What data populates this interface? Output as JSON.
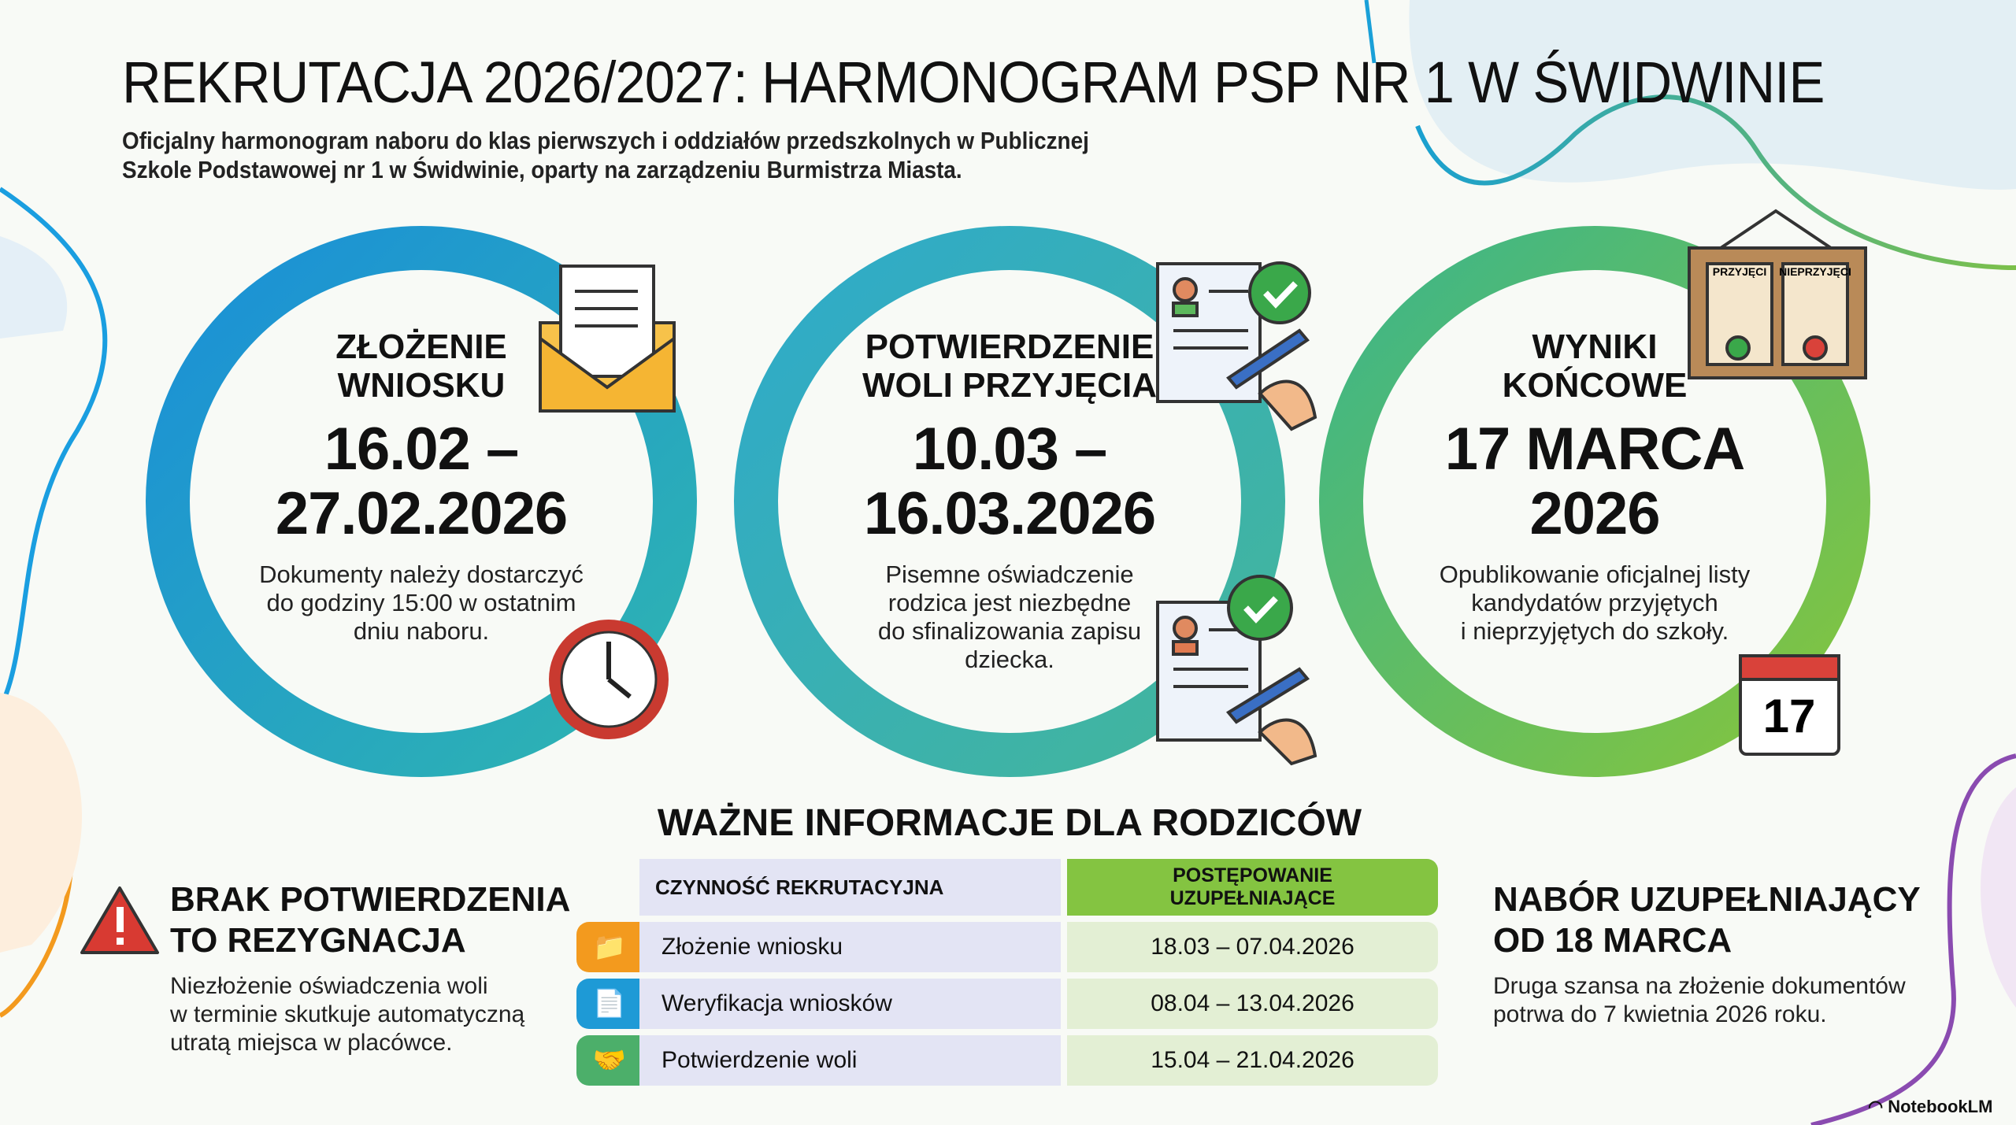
{
  "title": "REKRUTACJA 2026/2027: HARMONOGRAM PSP NR 1 W ŚWIDWINIE",
  "subtitle": [
    "Oficjalny harmonogram naboru do klas pierwszych i oddziałów przedszkolnych w Publicznej",
    "Szkole Podstawowej nr 1 w Świdwinie, oparty na zarządzeniu Burmistrza Miasta."
  ],
  "colors": {
    "blue": "#1e9ad6",
    "teal": "#39b3a6",
    "green": "#72c04a",
    "orange": "#f39a1e",
    "purple": "#8a4bb0"
  },
  "stages": [
    {
      "head": [
        "ZŁOŻENIE",
        "WNIOSKU"
      ],
      "date": [
        "16.02 –",
        "27.02.2026"
      ],
      "desc": [
        "Dokumenty należy dostarczyć",
        "do godziny 15:00 w ostatnim",
        "dniu naboru."
      ],
      "icons": [
        "envelope-icon",
        "clock-icon"
      ]
    },
    {
      "head": [
        "POTWIERDZENIE",
        "WOLI PRZYJĘCIA"
      ],
      "date": [
        "10.03 –",
        "16.03.2026"
      ],
      "desc": [
        "Pisemne oświadczenie",
        "rodzica jest niezbędne",
        "do sfinalizowania zapisu",
        "dziecka."
      ],
      "icons": [
        "signed-document-icon",
        "signed-document-icon"
      ]
    },
    {
      "head": [
        "WYNIKI",
        "KOŃCOWE"
      ],
      "date": [
        "17 MARCA",
        "2026"
      ],
      "desc": [
        "Opublikowanie oficjalnej listy",
        "kandydatów przyjętych",
        "i nieprzyjętych do szkoły."
      ],
      "icons": [
        "results-board-icon",
        "calendar-icon"
      ],
      "board": [
        "PRZYJĘCI",
        "NIEPRZYJĘCI"
      ],
      "calendar_day": "17"
    }
  ],
  "section_title": "WAŻNE INFORMACJE DLA RODZICÓW",
  "table": {
    "headers": [
      "CZYNNOŚĆ REKRUTACYJNA",
      "POSTĘPOWANIE UZUPEŁNIAJĄCE"
    ],
    "rows": [
      {
        "icon": "folder-icon",
        "activity": "Złożenie wniosku",
        "dates": "18.03 – 07.04.2026"
      },
      {
        "icon": "document-check-icon",
        "activity": "Weryfikacja wniosków",
        "dates": "08.04 – 13.04.2026"
      },
      {
        "icon": "handshake-icon",
        "activity": "Potwierdzenie woli",
        "dates": "15.04 – 21.04.2026"
      }
    ]
  },
  "warning": {
    "head": [
      "BRAK POTWIERDZENIA",
      "TO REZYGNACJA"
    ],
    "desc": [
      "Niezłożenie oświadczenia woli",
      "w terminie skutkuje automatyczną",
      "utratą miejsca w placówce."
    ]
  },
  "supplementary": {
    "head": [
      "NABÓR UZUPEŁNIAJĄCY",
      "OD 18 MARCA"
    ],
    "desc": [
      "Druga szansa na złożenie dokumentów",
      "potrwa do 7 kwietnia 2026 roku."
    ]
  },
  "brand": "NotebookLM"
}
